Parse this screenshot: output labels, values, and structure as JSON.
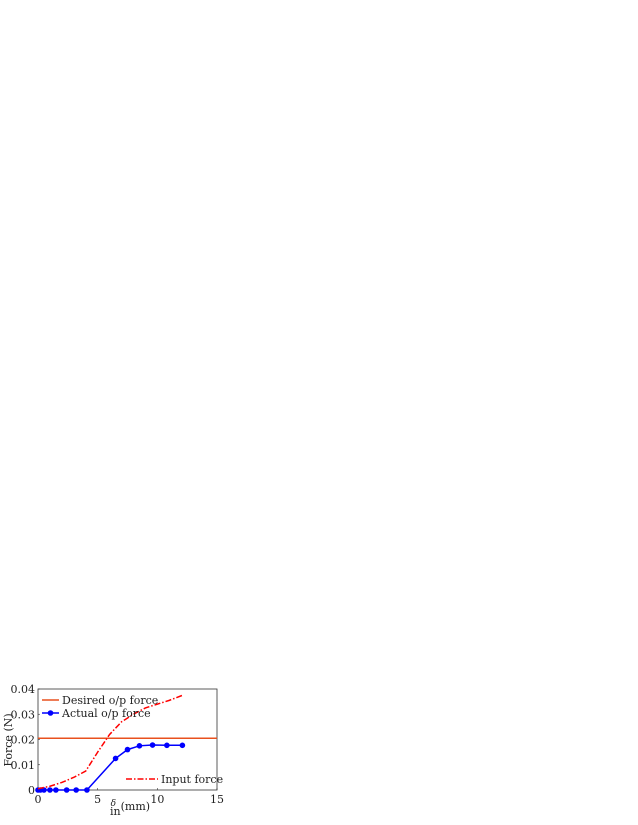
{
  "chart_data": {
    "type": "line",
    "title": "",
    "xlabel_symbol": "δ",
    "xlabel_subscript": "in",
    "xlabel_unit": "(mm)",
    "ylabel": "Force (N)",
    "xlim": [
      0,
      15
    ],
    "ylim": [
      0,
      0.04
    ],
    "xticks": [
      0,
      5,
      10,
      15
    ],
    "xtick_labels": [
      "0",
      "5",
      "10",
      "15"
    ],
    "yticks": [
      0,
      0.01,
      0.02,
      0.03,
      0.04
    ],
    "ytick_labels": [
      "0",
      "0.01",
      "0.02",
      "0.03",
      "0.04"
    ],
    "grid": false,
    "series": [
      {
        "name": "Desired o/p force",
        "color": "#e8501e",
        "style": "solid",
        "x": [
          0,
          15
        ],
        "y": [
          0.0205,
          0.0205
        ]
      },
      {
        "name": "Actual o/p force",
        "color": "#0000ff",
        "style": "solid-markers",
        "x": [
          0,
          0.2,
          0.5,
          1.0,
          1.5,
          2.4,
          3.2,
          4.1,
          6.5,
          7.5,
          8.5,
          9.6,
          10.8,
          12.1
        ],
        "y": [
          0,
          0,
          0,
          0,
          0,
          0,
          0,
          0,
          0.0125,
          0.016,
          0.0175,
          0.0178,
          0.0177,
          0.0177
        ]
      },
      {
        "name": "Input force",
        "color": "#ff0000",
        "style": "dash-dot",
        "x": [
          0,
          1,
          2,
          3,
          4,
          5,
          6,
          7,
          8,
          9,
          10,
          11,
          12.1
        ],
        "y": [
          0.0005,
          0.0015,
          0.003,
          0.005,
          0.0075,
          0.015,
          0.022,
          0.027,
          0.03,
          0.0325,
          0.034,
          0.0355,
          0.0375
        ]
      }
    ],
    "legend": [
      "top-left (Desired o/p force, Actual o/p force)",
      "bottom-right (Input force)"
    ]
  }
}
